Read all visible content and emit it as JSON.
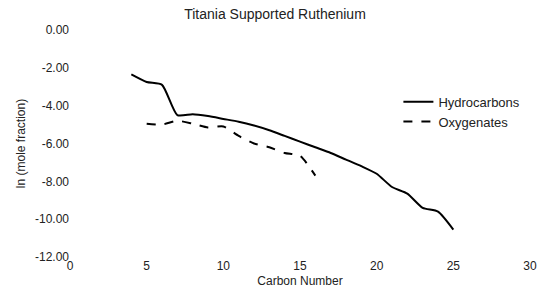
{
  "chart_data": {
    "type": "line",
    "title": "Titania Supported Ruthenium",
    "x_label": "Carbon Number",
    "y_label": "ln (mole fraction)",
    "series": [
      {
        "name": "Hydrocarbons",
        "color": "#000000",
        "line_style": "solid",
        "x": [
          4,
          5,
          6,
          7,
          8,
          9,
          10,
          11,
          12,
          13,
          14,
          15,
          16,
          17,
          18,
          19,
          20,
          21,
          22,
          23,
          24,
          25
        ],
        "values": [
          -2.35,
          -2.75,
          -2.9,
          -4.5,
          -4.45,
          -4.55,
          -4.7,
          -4.85,
          -5.05,
          -5.3,
          -5.6,
          -5.9,
          -6.2,
          -6.5,
          -6.85,
          -7.2,
          -7.6,
          -8.3,
          -8.65,
          -9.4,
          -9.6,
          -10.55
        ]
      },
      {
        "name": "Oxygenates",
        "color": "#000000",
        "line_style": "dashed",
        "x": [
          5,
          6,
          7,
          8,
          9,
          10,
          11,
          12,
          13,
          14,
          15,
          16
        ],
        "values": [
          -4.95,
          -5.0,
          -4.8,
          -4.95,
          -5.15,
          -5.1,
          -5.6,
          -6.0,
          -6.2,
          -6.5,
          -6.65,
          -7.7
        ]
      }
    ],
    "xlim": [
      0,
      30
    ],
    "xticks": [
      0,
      5,
      10,
      15,
      20,
      25,
      30
    ],
    "ylim": [
      -12,
      0
    ],
    "yticks": [
      {
        "value": -12,
        "label": "-12.00"
      },
      {
        "value": -10,
        "label": "-10.00"
      },
      {
        "value": -8,
        "label": "-8.00"
      },
      {
        "value": -6,
        "label": "-6.00"
      },
      {
        "value": -4,
        "label": "-4.00"
      },
      {
        "value": -2,
        "label": "-2.00"
      },
      {
        "value": 0,
        "label": "0.00"
      }
    ],
    "grid": false,
    "legend": "upper right"
  }
}
